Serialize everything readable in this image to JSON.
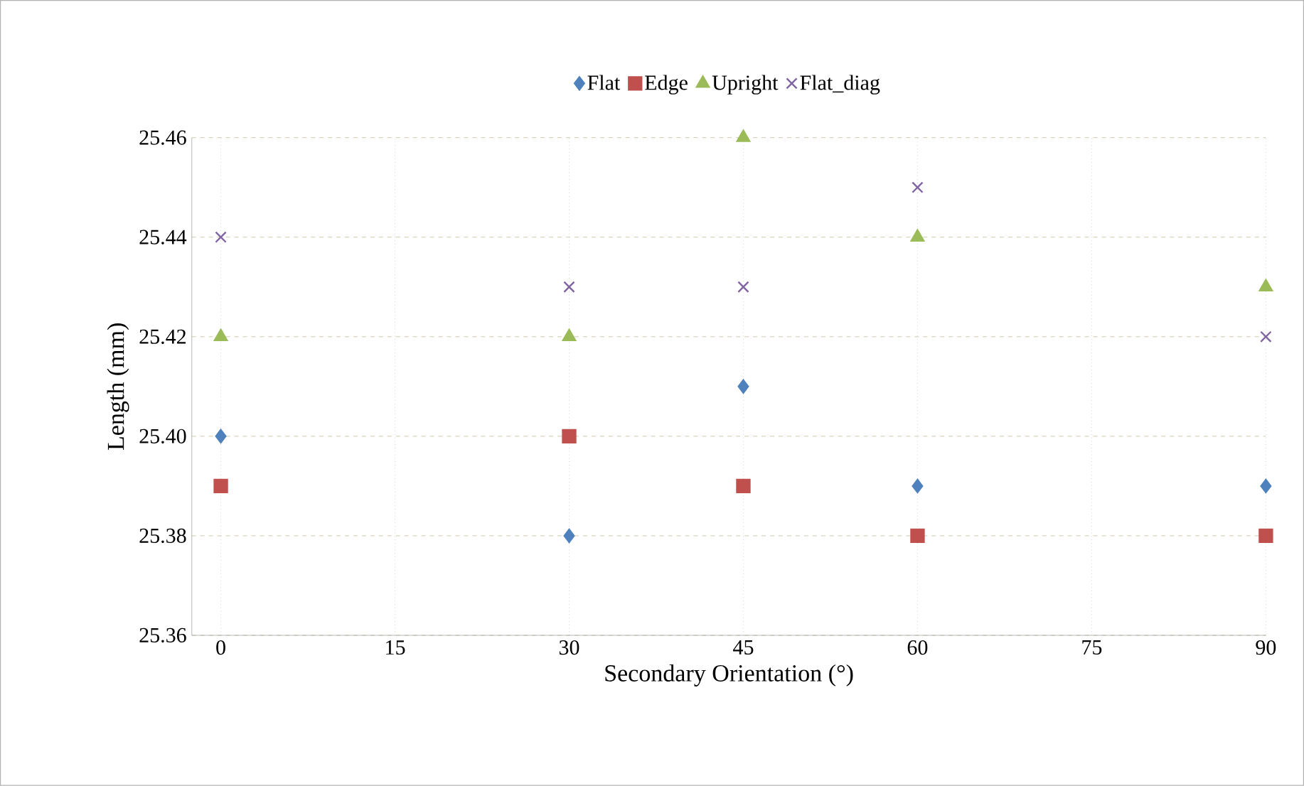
{
  "chart_data": {
    "type": "scatter",
    "xlabel": "Secondary Orientation (°)",
    "ylabel": "Length (mm)",
    "x": [
      0,
      30,
      45,
      60,
      90
    ],
    "series": [
      {
        "name": "Flat",
        "color": "#4f81bd",
        "marker": "diamond",
        "values": [
          25.4,
          25.38,
          25.41,
          25.39,
          25.39
        ]
      },
      {
        "name": "Edge",
        "color": "#c0504d",
        "marker": "square",
        "values": [
          25.39,
          25.4,
          25.39,
          25.38,
          25.38
        ]
      },
      {
        "name": "Upright",
        "color": "#9bbb59",
        "marker": "triangle",
        "values": [
          25.42,
          25.42,
          25.46,
          25.44,
          25.43
        ]
      },
      {
        "name": "Flat_diag",
        "color": "#8064a2",
        "marker": "cross",
        "values": [
          25.44,
          25.43,
          25.43,
          25.45,
          25.42
        ]
      }
    ],
    "xlim": [
      -2.5,
      90
    ],
    "xticks": [
      0,
      15,
      30,
      45,
      60,
      75,
      90
    ],
    "ylim": [
      25.36,
      25.46
    ],
    "yticks": [
      25.36,
      25.38,
      {
        "value": 25.4,
        "label": "25.40"
      },
      25.42,
      25.44,
      25.46
    ],
    "grid": true,
    "legend": "top"
  }
}
